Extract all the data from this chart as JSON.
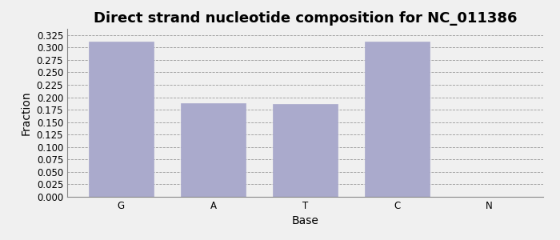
{
  "title": "Direct strand nucleotide composition for NC_011386",
  "categories": [
    "G",
    "A",
    "T",
    "C",
    "N"
  ],
  "values": [
    0.311,
    0.188,
    0.186,
    0.311,
    0.0
  ],
  "bar_color": "#aaaacc",
  "bar_edgecolor": "#aaaacc",
  "xlabel": "Base",
  "ylabel": "Fraction",
  "ylim": [
    0.0,
    0.3375
  ],
  "yticks": [
    0.0,
    0.025,
    0.05,
    0.075,
    0.1,
    0.125,
    0.15,
    0.175,
    0.2,
    0.225,
    0.25,
    0.275,
    0.3,
    0.325
  ],
  "title_fontsize": 13,
  "axis_fontsize": 10,
  "tick_fontsize": 8.5,
  "background_color": "#f0f0f0",
  "plot_background": "#f0f0f0",
  "grid_color": "#999999",
  "spine_color": "#888888"
}
